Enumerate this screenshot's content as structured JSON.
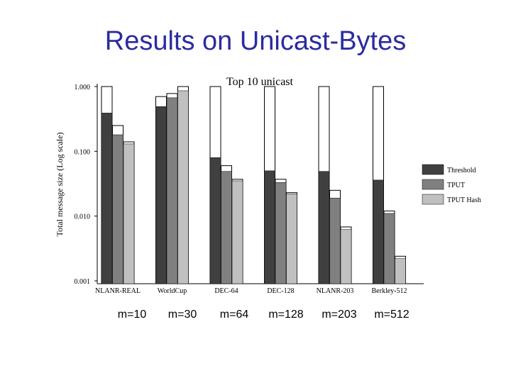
{
  "slide_title": "Results on Unicast-Bytes",
  "chart_data": {
    "type": "bar",
    "title": "Top 10 unicast",
    "y_label": "Total message size (Log scale)",
    "log_scale": true,
    "legend": "right",
    "categories": [
      "NLANR-REAL",
      "WorldCup",
      "DEC-64",
      "DEC-128",
      "NLANR-203",
      "Berkley-512"
    ],
    "series": [
      {
        "name": "Threshold",
        "color": "#404040",
        "values": [
          0.39,
          0.49,
          0.08,
          0.05,
          0.049,
          0.036
        ],
        "outline_values": [
          1.0,
          0.7,
          1.0,
          1.0,
          1.0,
          1.0
        ]
      },
      {
        "name": "TPUT",
        "color": "#808080",
        "values": [
          0.18,
          0.67,
          0.049,
          0.033,
          0.019,
          0.011
        ],
        "outline_values": [
          0.25,
          0.78,
          0.06,
          0.037,
          0.025,
          0.012
        ]
      },
      {
        "name": "TPUT Hash",
        "color": "#c0c0c0",
        "values": [
          0.13,
          0.86,
          0.035,
          0.022,
          0.0062,
          0.0022
        ],
        "outline_values": [
          0.14,
          1.0,
          0.037,
          0.023,
          0.0068,
          0.0024
        ]
      }
    ],
    "ylim": [
      0.001,
      1
    ],
    "yticks": [
      {
        "value": 0.001,
        "label": "0.001"
      },
      {
        "value": 0.01,
        "label": "0.010"
      },
      {
        "value": 0.1,
        "label": "0.100"
      },
      {
        "value": 1,
        "label": "1.000"
      }
    ],
    "annotations": [
      "m=10",
      "m=30",
      "m=64",
      "m=128",
      "m=203",
      "m=512"
    ]
  }
}
